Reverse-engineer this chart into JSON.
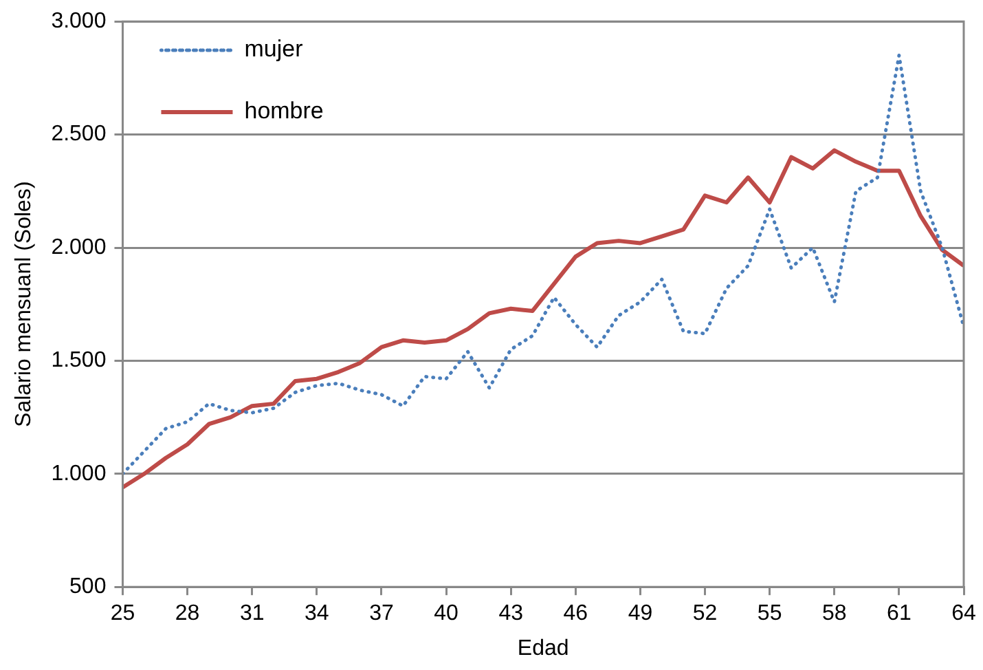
{
  "chart_data": {
    "type": "line",
    "xlabel": "Edad",
    "ylabel": "Salario mensuanl (Soles)",
    "x": [
      25,
      26,
      27,
      28,
      29,
      30,
      31,
      32,
      33,
      34,
      35,
      36,
      37,
      38,
      39,
      40,
      41,
      42,
      43,
      44,
      45,
      46,
      47,
      48,
      49,
      50,
      51,
      52,
      53,
      54,
      55,
      56,
      57,
      58,
      59,
      60,
      61,
      62,
      63,
      64
    ],
    "series": [
      {
        "name": "mujer",
        "color": "#4a7ebb",
        "line_style": "dotted",
        "values": [
          1000,
          1100,
          1200,
          1230,
          1310,
          1280,
          1270,
          1290,
          1360,
          1390,
          1400,
          1370,
          1350,
          1300,
          1430,
          1420,
          1540,
          1380,
          1550,
          1610,
          1780,
          1660,
          1560,
          1700,
          1760,
          1860,
          1630,
          1620,
          1820,
          1920,
          2170,
          1910,
          2000,
          1760,
          2250,
          2310,
          2850,
          2250,
          2000,
          1650
        ]
      },
      {
        "name": "hombre",
        "color": "#be4b48",
        "line_style": "solid",
        "values": [
          940,
          1000,
          1070,
          1130,
          1220,
          1250,
          1300,
          1310,
          1410,
          1420,
          1450,
          1490,
          1560,
          1590,
          1580,
          1590,
          1640,
          1710,
          1730,
          1720,
          1840,
          1960,
          2020,
          2030,
          2020,
          2050,
          2080,
          2230,
          2200,
          2310,
          2200,
          2400,
          2350,
          2430,
          2380,
          2340,
          2340,
          2140,
          1990,
          1920
        ]
      }
    ],
    "xlim": [
      25,
      64
    ],
    "xticks": [
      25,
      28,
      31,
      34,
      37,
      40,
      43,
      46,
      49,
      52,
      55,
      58,
      61,
      64
    ],
    "ylim": [
      500,
      3000
    ],
    "yticks": [
      {
        "value": 500,
        "label": "500"
      },
      {
        "value": 1000,
        "label": "1.000"
      },
      {
        "value": 1500,
        "label": "1.500"
      },
      {
        "value": 2000,
        "label": "2.000"
      },
      {
        "value": 2500,
        "label": "2.500"
      },
      {
        "value": 3000,
        "label": "3.000"
      }
    ],
    "grid": "y",
    "legend": "top left",
    "marker": "none"
  }
}
